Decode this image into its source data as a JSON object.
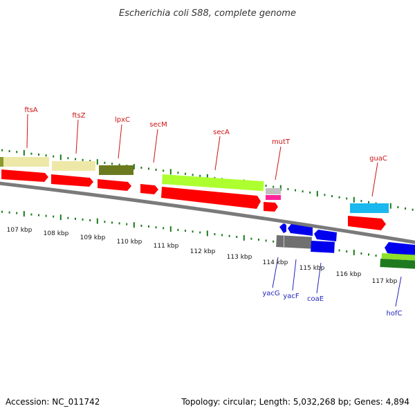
{
  "title": "Escherichia coli S88, complete genome",
  "footer": {
    "accession": "Accession: NC_011742",
    "topology": "Topology: circular; Length: 5,032,268 bp; Genes: 4,894"
  },
  "kbp_ticks": [
    "107 kbp",
    "108 kbp",
    "109 kbp",
    "110 kbp",
    "111 kbp",
    "112 kbp",
    "113 kbp",
    "114 kbp",
    "115 kbp",
    "116 kbp",
    "117 kbp"
  ],
  "top_genes": [
    "ftsA",
    "ftsZ",
    "lpxC",
    "secM",
    "secA",
    "mutT",
    "guaC"
  ],
  "bottom_genes": [
    "yacG",
    "yacF",
    "coaE",
    "hofC"
  ],
  "colors": {
    "ftsA": "#eee8a8",
    "ftsZ": "#eee8a8",
    "lpxC": "#6b7a1e",
    "secA": "#adff2f",
    "mutT": "#c0c0c0",
    "guaC": "#1ab8ee",
    "cds": "#ff0000",
    "mutT_cds": "#ff2299",
    "bottom_blue": "#0000ee",
    "yacF": "#707070",
    "hofC_green": "#8ee028",
    "hofC_dark": "#1f7a1f",
    "backbone": "#7a7a7a",
    "tick": "#1a7a1a"
  }
}
